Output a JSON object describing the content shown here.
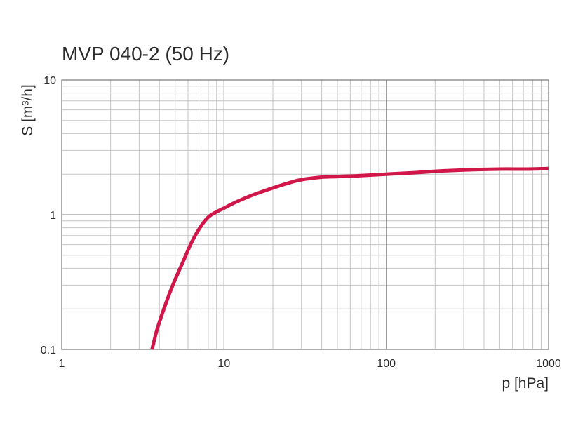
{
  "chart_data": {
    "type": "line",
    "title": "MVP 040-2 (50 Hz)",
    "xlabel": "p  [hPa]",
    "ylabel": "S  [m³/h]",
    "xscale": "log",
    "yscale": "log",
    "xlim": [
      1,
      1000
    ],
    "ylim": [
      0.1,
      10
    ],
    "grid": true,
    "x_ticks": [
      {
        "value": 1,
        "label": "1"
      },
      {
        "value": 10,
        "label": "10"
      },
      {
        "value": 100,
        "label": "100"
      },
      {
        "value": 1000,
        "label": "1000"
      }
    ],
    "y_ticks": [
      {
        "value": 0.1,
        "label": "0.1"
      },
      {
        "value": 1,
        "label": "1"
      },
      {
        "value": 10,
        "label": "10"
      }
    ],
    "series": [
      {
        "color": "#d1164a",
        "x": [
          3.6,
          3.8,
          4.0,
          4.5,
          5.0,
          5.6,
          6.3,
          7.1,
          8.0,
          9.0,
          10,
          12,
          15,
          20,
          25,
          30,
          40,
          50,
          70,
          100,
          150,
          200,
          300,
          500,
          700,
          1000
        ],
        "y": [
          0.1,
          0.13,
          0.16,
          0.24,
          0.33,
          0.45,
          0.62,
          0.8,
          0.96,
          1.05,
          1.12,
          1.25,
          1.4,
          1.58,
          1.72,
          1.82,
          1.9,
          1.92,
          1.95,
          2.0,
          2.05,
          2.1,
          2.15,
          2.18,
          2.18,
          2.2
        ]
      }
    ]
  }
}
